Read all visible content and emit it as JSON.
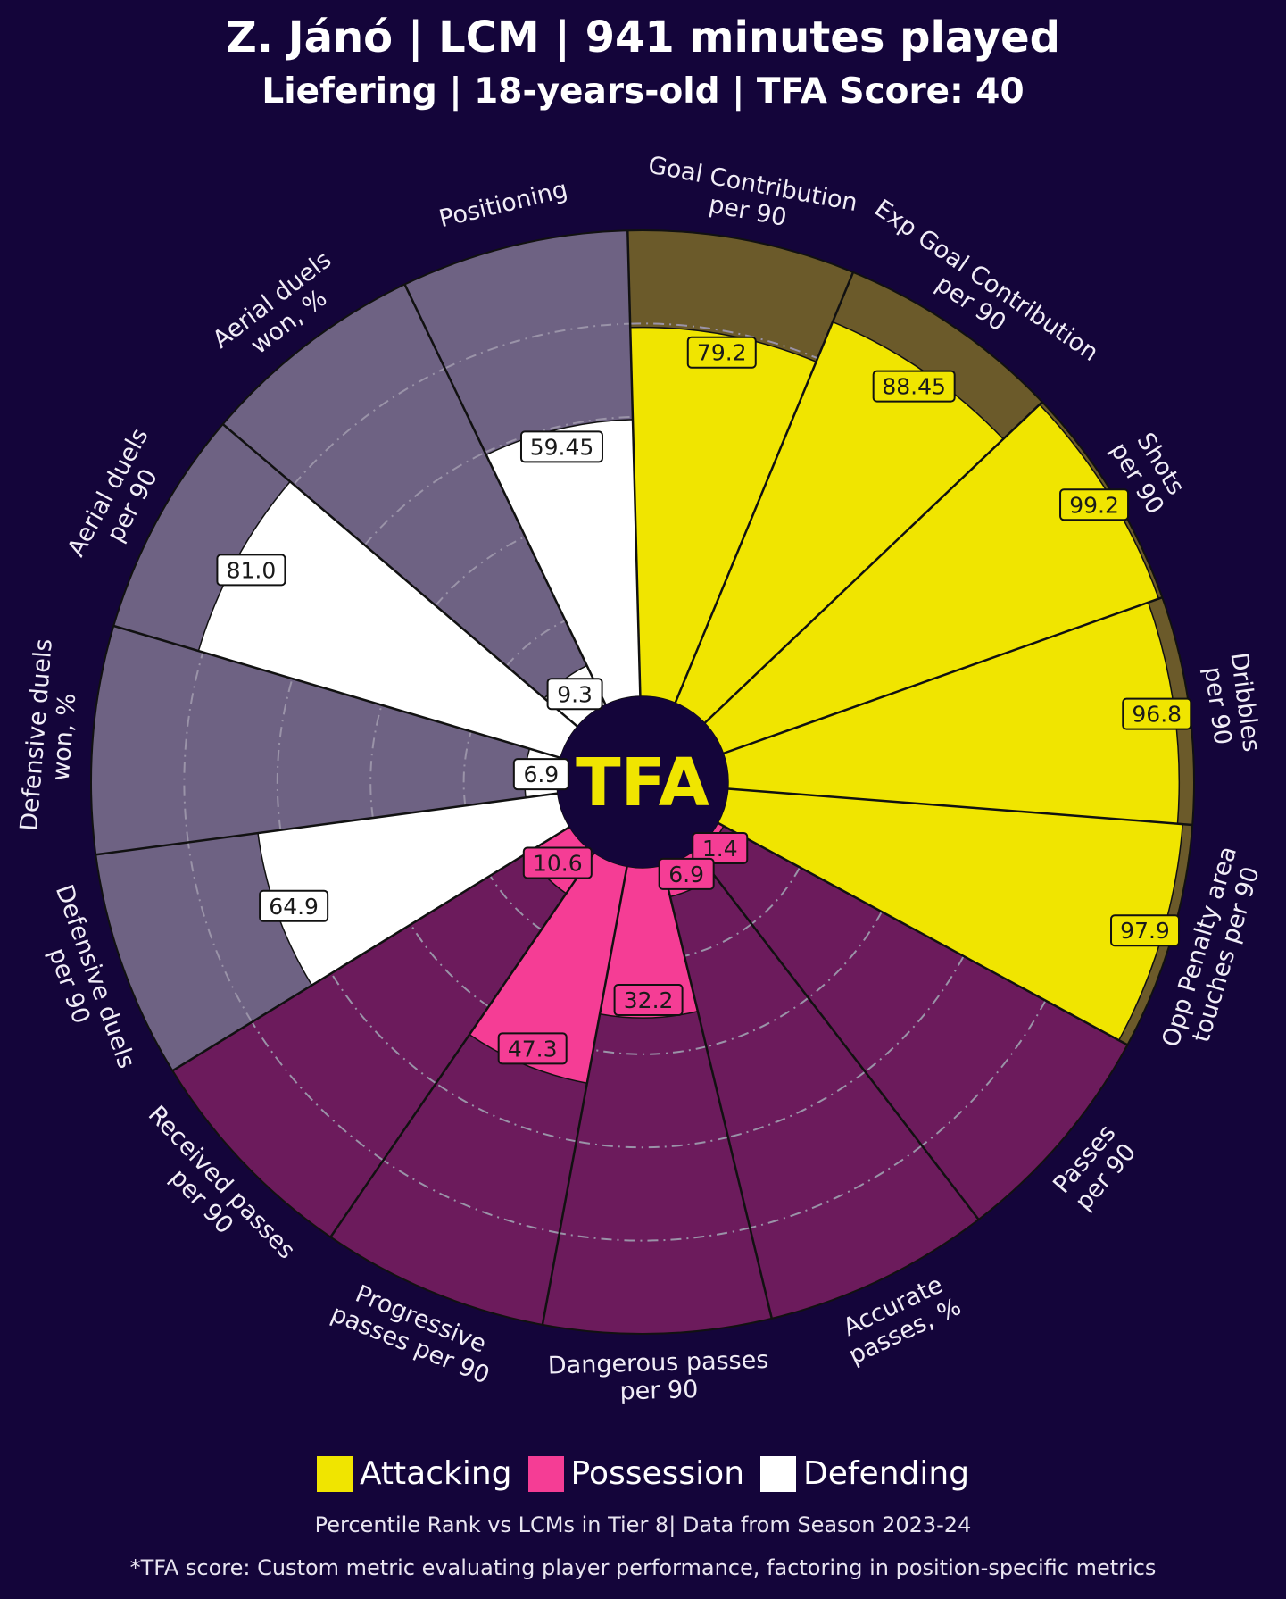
{
  "title": "Z. Jánó | LCM | 941 minutes played",
  "subtitle": "Liefering | 18-years-old | TFA Score: 40",
  "center_logo": "TFA",
  "colors": {
    "background": "#14053a",
    "attacking": "#f0e500",
    "possession": "#f53d95",
    "defending": "#ffffff",
    "attacking_bg": "#6b5a2a",
    "possession_bg": "#6c1b5c",
    "defending_bg": "#6e6283"
  },
  "legend": [
    {
      "label": "Attacking",
      "color": "#f0e500"
    },
    {
      "label": "Possession",
      "color": "#f53d95"
    },
    {
      "label": "Defending",
      "color": "#ffffff"
    }
  ],
  "footnote_1": "Percentile Rank vs LCMs in Tier 8| Data from Season 2023-24",
  "footnote_2": "*TFA score: Custom metric evaluating player performance, factoring in position-specific metrics",
  "chart_data": {
    "type": "radar-bar",
    "title": "Z. Jánó | LCM | 941 minutes played",
    "subtitle": "Liefering | 18-years-old | TFA Score: 40",
    "value_range": [
      0,
      100
    ],
    "metrics": [
      {
        "label": "Goal Contribution\nper 90",
        "value": 79.2,
        "label_text": "79.2",
        "group": "Attacking"
      },
      {
        "label": "Exp Goal Contribution\nper 90",
        "value": 88.45,
        "label_text": "88.45",
        "group": "Attacking"
      },
      {
        "label": "Shots\nper 90",
        "value": 99.2,
        "label_text": "99.2",
        "group": "Attacking"
      },
      {
        "label": "Dribbles\nper 90",
        "value": 96.8,
        "label_text": "96.8",
        "group": "Attacking"
      },
      {
        "label": "Opp Penalty area\ntouches per 90",
        "value": 97.9,
        "label_text": "97.9",
        "group": "Attacking"
      },
      {
        "label": "Passes\nper 90",
        "value": 1.4,
        "label_text": "1.4",
        "group": "Possession"
      },
      {
        "label": "Accurate\npasses, %",
        "value": 6.9,
        "label_text": "6.9",
        "group": "Possession"
      },
      {
        "label": "Dangerous passes\nper 90",
        "value": 32.2,
        "label_text": "32.2",
        "group": "Possession"
      },
      {
        "label": "Progressive\npasses per 90",
        "value": 47.3,
        "label_text": "47.3",
        "group": "Possession"
      },
      {
        "label": "Received passes\nper 90",
        "value": 10.6,
        "label_text": "10.6",
        "group": "Possession"
      },
      {
        "label": "Defensive duels\nper 90",
        "value": 64.9,
        "label_text": "64.9",
        "group": "Defending"
      },
      {
        "label": "Defensive duels\nwon, %",
        "value": 6.9,
        "label_text": "6.9",
        "group": "Defending"
      },
      {
        "label": "Aerial duels\nper 90",
        "value": 81.0,
        "label_text": "81.0",
        "group": "Defending"
      },
      {
        "label": "Aerial duels\nwon, %",
        "value": 9.3,
        "label_text": "9.3",
        "group": "Defending"
      },
      {
        "label": "Positioning",
        "value": 59.45,
        "label_text": "59.45",
        "group": "Defending"
      }
    ],
    "legend": [
      "Attacking",
      "Possession",
      "Defending"
    ],
    "legend_position": "bottom",
    "grid": true
  }
}
